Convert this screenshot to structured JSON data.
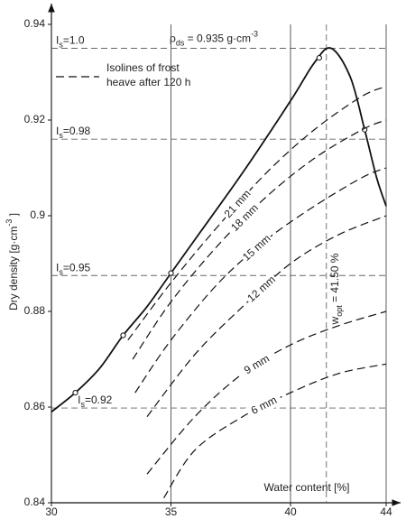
{
  "chart_data": {
    "type": "line",
    "x_label": "Water content  [%]",
    "y_label": [
      [
        "Dry density [g·cm",
        ""
      ],
      [
        "-3",
        "sup"
      ],
      [
        " ]",
        ""
      ]
    ],
    "xlim": [
      30,
      44
    ],
    "ylim": [
      0.84,
      0.94
    ],
    "xticks": [
      30,
      35,
      40,
      44
    ],
    "yticks": [
      0.84,
      0.86,
      0.88,
      0.9,
      0.92,
      0.94
    ],
    "grid": "x",
    "series": [
      {
        "style": "solid",
        "color": "#111",
        "x": [
          30,
          31,
          32,
          33,
          34,
          35,
          36,
          38,
          40,
          41,
          41.7,
          42.5,
          43.1,
          43.6,
          44
        ],
        "values": [
          0.859,
          0.863,
          0.868,
          0.875,
          0.881,
          0.888,
          0.895,
          0.909,
          0.924,
          0.932,
          0.935,
          0.929,
          0.918,
          0.908,
          0.902
        ]
      },
      {
        "style": "marker",
        "color": "#111",
        "x": [
          31,
          33,
          35,
          41.2,
          43.1
        ],
        "values": [
          0.863,
          0.875,
          0.888,
          0.933,
          0.918
        ]
      },
      {
        "name": "21 mm",
        "style": "dashed",
        "color": "#111",
        "x": [
          33.2,
          35,
          37,
          39,
          41,
          43,
          44
        ],
        "values": [
          0.874,
          0.886,
          0.898,
          0.909,
          0.918,
          0.925,
          0.927
        ]
      },
      {
        "name": "18 mm",
        "style": "dashed",
        "color": "#111",
        "x": [
          33.4,
          35,
          37,
          39,
          41,
          43,
          44
        ],
        "values": [
          0.87,
          0.882,
          0.894,
          0.904,
          0.912,
          0.918,
          0.92
        ]
      },
      {
        "name": "15 mm",
        "style": "dashed",
        "color": "#111",
        "x": [
          33.5,
          35,
          37,
          39,
          41,
          43,
          44
        ],
        "values": [
          0.863,
          0.874,
          0.886,
          0.895,
          0.902,
          0.908,
          0.91
        ]
      },
      {
        "name": "12 mm",
        "style": "dashed",
        "color": "#111",
        "x": [
          34,
          36,
          38,
          40,
          42,
          44
        ],
        "values": [
          0.858,
          0.871,
          0.881,
          0.89,
          0.896,
          0.9
        ]
      },
      {
        "name": "9 mm",
        "style": "dashed",
        "color": "#111",
        "x": [
          34,
          36,
          38,
          40,
          42,
          44
        ],
        "values": [
          0.846,
          0.858,
          0.867,
          0.873,
          0.877,
          0.88
        ]
      },
      {
        "name": "6 mm",
        "style": "dashed",
        "color": "#111",
        "x": [
          34.7,
          36,
          38,
          40,
          42,
          44
        ],
        "values": [
          0.841,
          0.851,
          0.858,
          0.863,
          0.867,
          0.869
        ]
      }
    ],
    "hlines": [
      {
        "value": 0.935,
        "label": [
          [
            "I",
            ""
          ],
          [
            "s",
            "sub"
          ],
          [
            "=1.0",
            ""
          ]
        ]
      },
      {
        "value": 0.916,
        "label": [
          [
            "I",
            ""
          ],
          [
            "s",
            "sub"
          ],
          [
            "=0.98",
            ""
          ]
        ]
      },
      {
        "value": 0.8875,
        "label": [
          [
            "I",
            ""
          ],
          [
            "s",
            "sub"
          ],
          [
            "=0.95",
            ""
          ]
        ]
      },
      {
        "value": 0.8598,
        "label": [
          [
            "I",
            ""
          ],
          [
            "s",
            "sub"
          ],
          [
            "=0.92",
            ""
          ]
        ]
      }
    ],
    "vline": {
      "value": 41.5,
      "label": [
        [
          "w",
          ""
        ],
        [
          "opt",
          "sub"
        ],
        [
          " = 41.50 %",
          ""
        ]
      ]
    },
    "annotation": [
      [
        "ρ",
        ""
      ],
      [
        "ds",
        "sub"
      ],
      [
        " = 0.935 g·cm",
        ""
      ],
      [
        "-3",
        "sup"
      ]
    ],
    "legend": [
      "Isolines of frost",
      "heave after 120 h"
    ]
  }
}
